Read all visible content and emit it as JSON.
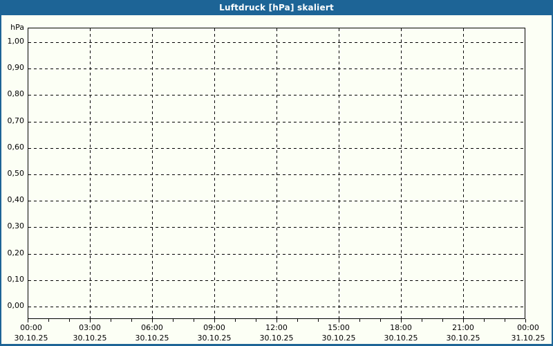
{
  "title": "Luftdruck [hPa] skaliert",
  "colors": {
    "titlebar": "#1d6496",
    "titlebar_text": "#ffffff",
    "window_background": "#fcfff5",
    "grid": "#000000",
    "label_text": "#000000"
  },
  "chart_data": {
    "type": "line",
    "title": "Luftdruck [hPa] skaliert",
    "xlabel": "",
    "ylabel": "hPa",
    "ylim": [
      0.0,
      1.0
    ],
    "y_tick_step": 0.1,
    "y_ticks": [
      "1,00",
      "0,90",
      "0,80",
      "0,70",
      "0,60",
      "0,50",
      "0,40",
      "0,30",
      "0,20",
      "0,10",
      "0,00"
    ],
    "x_major_tick_interval_hours": 3,
    "x_minor_tick_interval_hours": 1,
    "x_ticks": [
      {
        "time": "00:00",
        "date": "30.10.25"
      },
      {
        "time": "03:00",
        "date": "30.10.25"
      },
      {
        "time": "06:00",
        "date": "30.10.25"
      },
      {
        "time": "09:00",
        "date": "30.10.25"
      },
      {
        "time": "12:00",
        "date": "30.10.25"
      },
      {
        "time": "15:00",
        "date": "30.10.25"
      },
      {
        "time": "18:00",
        "date": "30.10.25"
      },
      {
        "time": "21:00",
        "date": "30.10.25"
      },
      {
        "time": "00:00",
        "date": "31.10.25"
      }
    ],
    "series": [],
    "grid": "dashed",
    "legend": "none"
  }
}
